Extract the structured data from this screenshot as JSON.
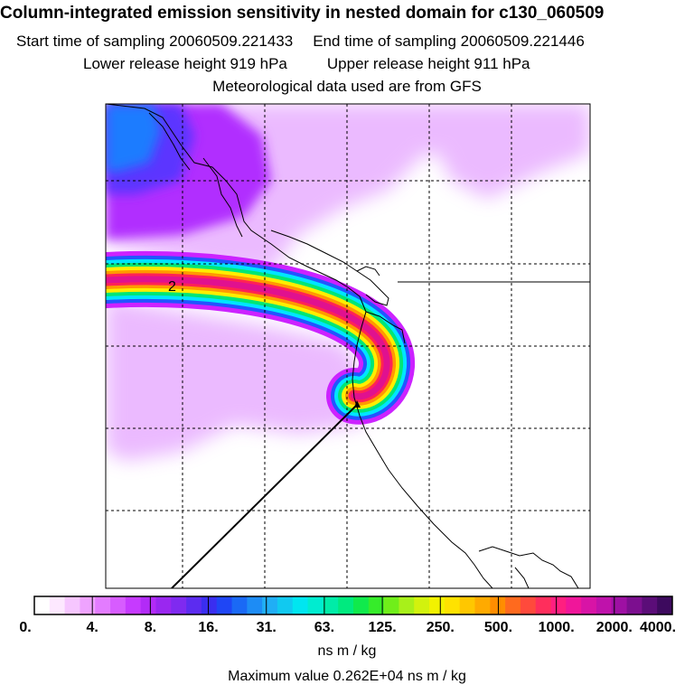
{
  "header": {
    "title": "Column-integrated emission sensitivity in nested domain for c130_060509",
    "start_time": "Start time of sampling 20060509.221433",
    "end_time": "End time of sampling 20060509.221446",
    "lower_release": "Lower release height  919 hPa",
    "upper_release": "Upper release height  911 hPa",
    "met_data": "Meteorological data used are from GFS"
  },
  "map": {
    "marker_label": "2",
    "plume_colors": [
      "#cc22ff",
      "#2255ff",
      "#00e5ff",
      "#00e676",
      "#ffee00",
      "#ff9900",
      "#ff2255",
      "#e0118f"
    ],
    "background_shade": "#e9b3ff",
    "upper_left_colors": [
      "#b12dff",
      "#5c35ff",
      "#1a7bff"
    ]
  },
  "colorbar": {
    "ticks": [
      "0.",
      "4.",
      "8.",
      "16.",
      "31.",
      "63.",
      "125.",
      "250.",
      "500.",
      "1000.",
      "2000.",
      "4000."
    ],
    "colors": [
      "#ffffff",
      "#fde8ff",
      "#f6c6ff",
      "#efa3ff",
      "#e37cff",
      "#d75cff",
      "#c63aff",
      "#b22bf7",
      "#9a27f0",
      "#7f2af0",
      "#5c2cf0",
      "#3a2ef0",
      "#1f46f5",
      "#1a69f5",
      "#1d8cf5",
      "#20aef5",
      "#11c9f0",
      "#00e6f0",
      "#00ecd0",
      "#00eca8",
      "#00ea7f",
      "#10ea4c",
      "#36ec2a",
      "#70ee1a",
      "#a8f01a",
      "#d2f20e",
      "#f2f200",
      "#ffe200",
      "#ffc700",
      "#ffaa00",
      "#ff8d00",
      "#ff6a1e",
      "#ff4a3c",
      "#ff2e5c",
      "#ff1f80",
      "#f0169a",
      "#d814a6",
      "#bf12ab",
      "#9e10a3",
      "#7c0f8f",
      "#5b0d78",
      "#3d0a5e"
    ],
    "units": "ns m / kg",
    "max_value": "Maximum value  0.262E+04 ns m / kg"
  }
}
